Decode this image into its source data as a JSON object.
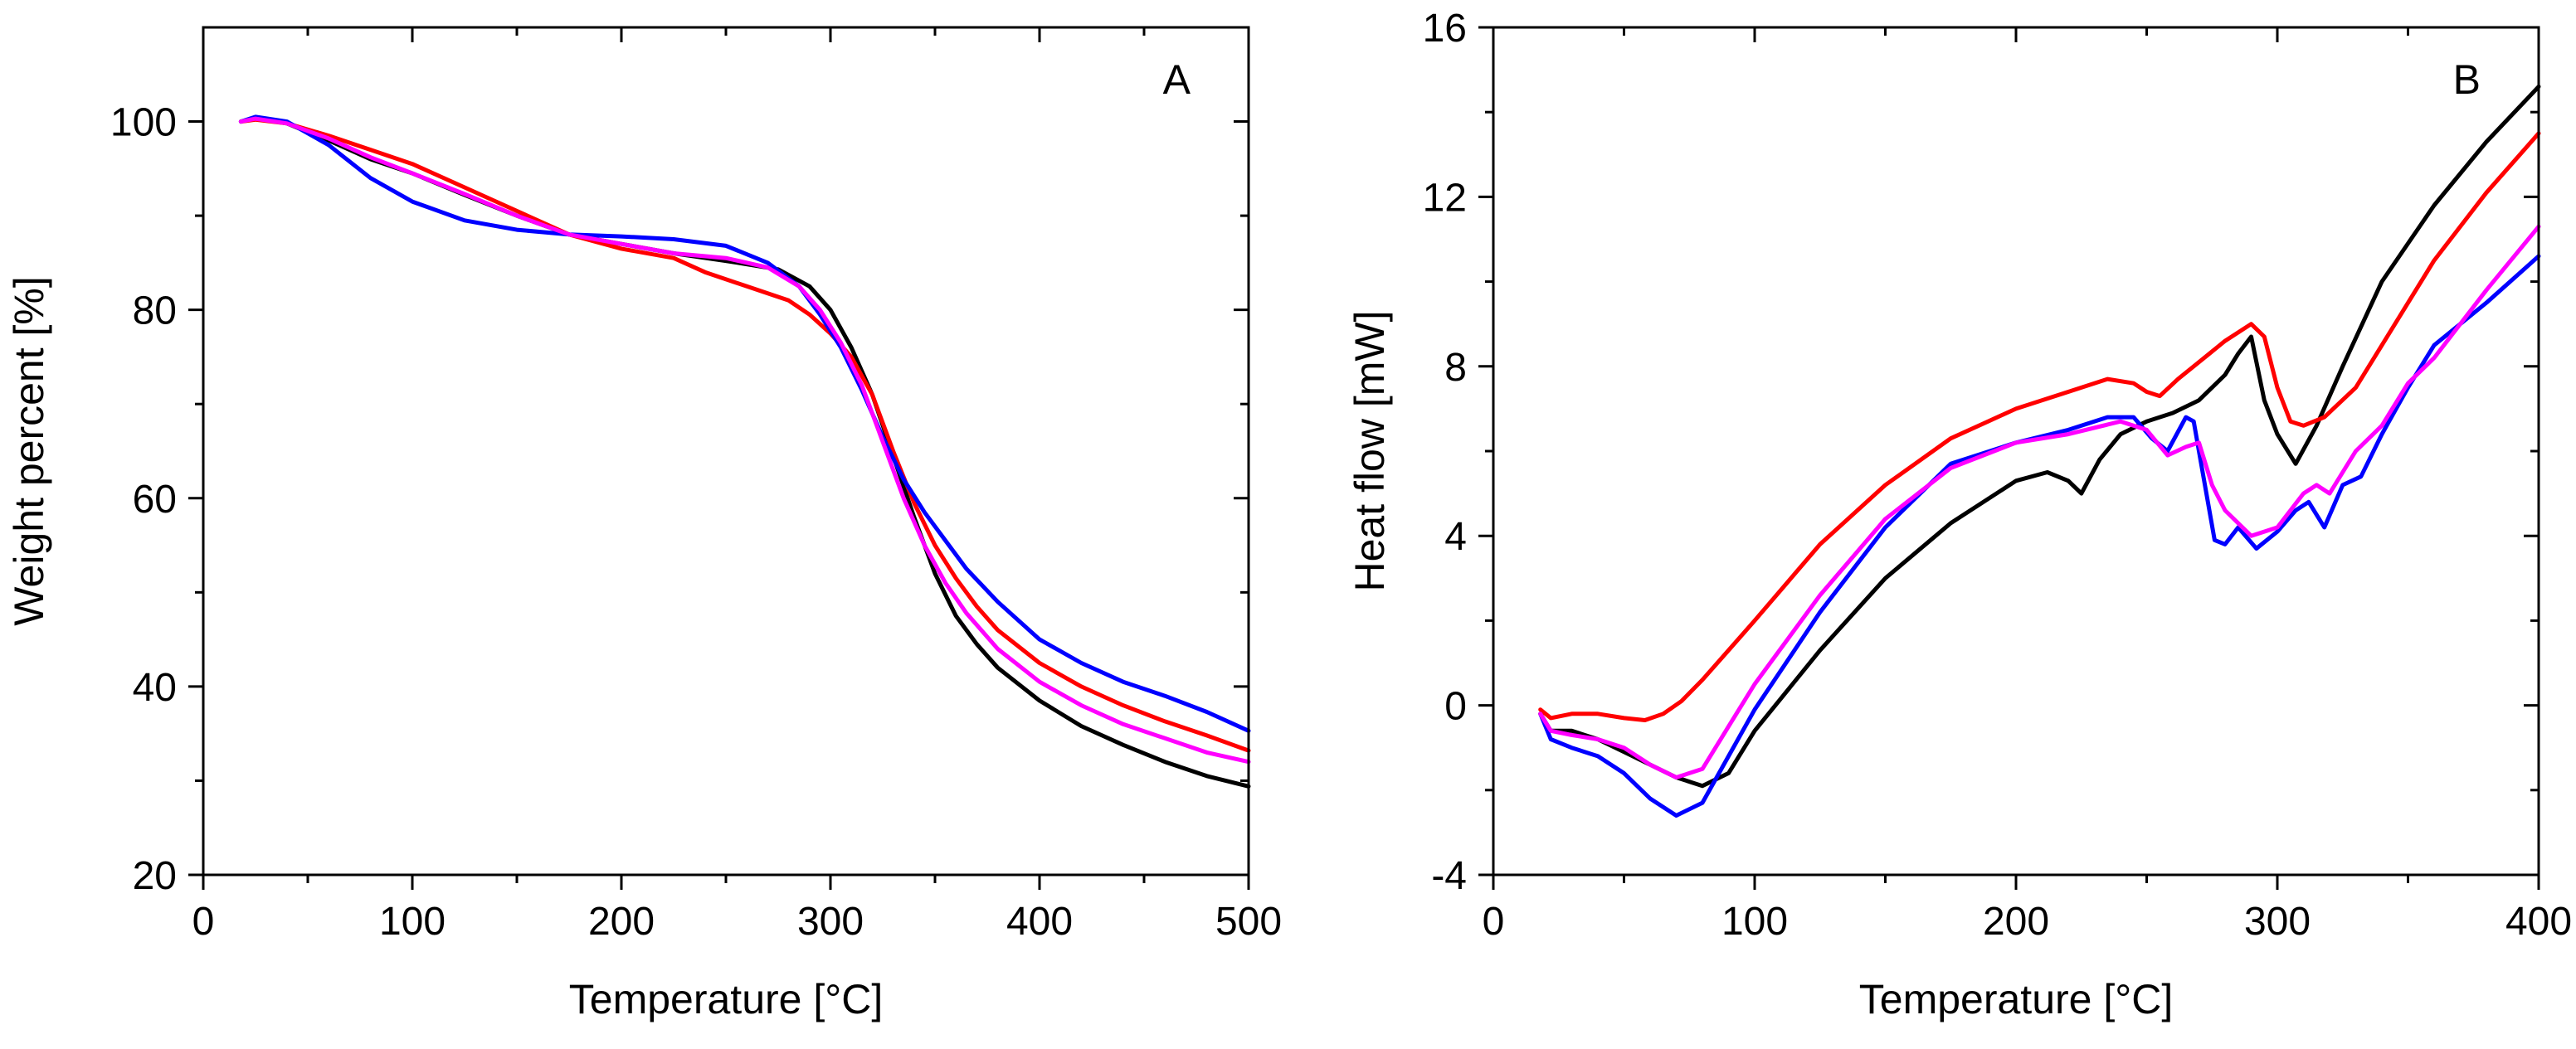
{
  "chart_data": [
    {
      "type": "line",
      "panel_label": "A",
      "xlabel": "Temperature [°C]",
      "ylabel": "Weight percent [%]",
      "xlim": [
        0,
        500
      ],
      "ylim": [
        20,
        110
      ],
      "xticks": [
        0,
        100,
        200,
        300,
        400,
        500
      ],
      "yticks": [
        20,
        40,
        60,
        80,
        100
      ],
      "grid": false,
      "series": [
        {
          "color": "#000000",
          "x": [
            18,
            25,
            40,
            60,
            80,
            100,
            125,
            150,
            175,
            200,
            225,
            250,
            275,
            290,
            300,
            310,
            320,
            330,
            340,
            350,
            360,
            370,
            380,
            400,
            420,
            440,
            460,
            480,
            500
          ],
          "y": [
            100,
            100.4,
            99.8,
            98,
            96,
            94.5,
            92.2,
            90,
            88,
            87,
            86,
            85.2,
            84.3,
            82.5,
            80,
            76,
            71,
            64.5,
            58,
            52,
            47.5,
            44.5,
            42,
            38.5,
            35.8,
            33.8,
            32,
            30.5,
            29.4
          ]
        },
        {
          "color": "#ff0000",
          "x": [
            18,
            25,
            40,
            60,
            80,
            100,
            125,
            150,
            175,
            200,
            225,
            240,
            260,
            280,
            290,
            300,
            310,
            320,
            330,
            340,
            350,
            360,
            370,
            380,
            400,
            420,
            440,
            460,
            480,
            500
          ],
          "y": [
            100,
            100.2,
            99.8,
            98.5,
            97,
            95.5,
            93,
            90.5,
            88,
            86.5,
            85.5,
            84,
            82.5,
            81,
            79.5,
            77.5,
            75,
            71,
            65,
            59.5,
            55,
            51.5,
            48.5,
            46,
            42.5,
            40,
            38,
            36.3,
            34.8,
            33.2
          ]
        },
        {
          "color": "#0000ff",
          "x": [
            18,
            25,
            40,
            60,
            80,
            100,
            125,
            150,
            175,
            200,
            225,
            250,
            270,
            285,
            295,
            305,
            315,
            325,
            335,
            345,
            355,
            365,
            380,
            400,
            420,
            440,
            460,
            480,
            500
          ],
          "y": [
            100,
            100.5,
            100,
            97.5,
            94,
            91.5,
            89.5,
            88.5,
            88,
            87.8,
            87.5,
            86.8,
            85,
            82.5,
            79.5,
            76,
            71.5,
            66.5,
            62,
            58.5,
            55.5,
            52.5,
            49,
            45,
            42.5,
            40.5,
            39,
            37.3,
            35.3
          ]
        },
        {
          "color": "#ff00ff",
          "x": [
            18,
            25,
            40,
            60,
            80,
            100,
            125,
            150,
            175,
            200,
            225,
            250,
            270,
            285,
            295,
            305,
            315,
            325,
            335,
            345,
            355,
            365,
            380,
            400,
            420,
            440,
            460,
            480,
            500
          ],
          "y": [
            100,
            100.3,
            99.8,
            98.2,
            96.2,
            94.5,
            92.3,
            90,
            88,
            87,
            86,
            85.5,
            84.5,
            82.5,
            80,
            76.5,
            72,
            66,
            60,
            55,
            51,
            47.8,
            44,
            40.5,
            38,
            36,
            34.5,
            33,
            32
          ]
        }
      ]
    },
    {
      "type": "line",
      "panel_label": "B",
      "xlabel": "Temperature [°C]",
      "ylabel": "Heat flow [mW]",
      "xlim": [
        0,
        400
      ],
      "ylim": [
        -4,
        16
      ],
      "xticks": [
        0,
        100,
        200,
        300,
        400
      ],
      "yticks": [
        -4,
        0,
        4,
        8,
        12,
        16
      ],
      "grid": false,
      "series": [
        {
          "color": "#000000",
          "x": [
            18,
            22,
            30,
            40,
            50,
            60,
            70,
            80,
            90,
            100,
            125,
            150,
            175,
            200,
            212,
            220,
            225,
            232,
            240,
            250,
            260,
            270,
            280,
            285,
            290,
            295,
            300,
            307,
            315,
            325,
            340,
            360,
            380,
            400
          ],
          "y": [
            -0.2,
            -0.6,
            -0.6,
            -0.8,
            -1.1,
            -1.4,
            -1.7,
            -1.9,
            -1.6,
            -0.6,
            1.3,
            3,
            4.3,
            5.3,
            5.5,
            5.3,
            5.0,
            5.8,
            6.4,
            6.7,
            6.9,
            7.2,
            7.8,
            8.3,
            8.7,
            7.2,
            6.4,
            5.7,
            6.6,
            8,
            10,
            11.8,
            13.3,
            14.6
          ]
        },
        {
          "color": "#ff0000",
          "x": [
            18,
            22,
            30,
            40,
            50,
            58,
            65,
            72,
            80,
            90,
            100,
            125,
            150,
            175,
            200,
            220,
            235,
            245,
            250,
            255,
            262,
            270,
            280,
            290,
            295,
            300,
            305,
            310,
            318,
            330,
            345,
            360,
            380,
            400
          ],
          "y": [
            -0.1,
            -0.3,
            -0.2,
            -0.2,
            -0.3,
            -0.35,
            -0.2,
            0.1,
            0.6,
            1.3,
            2,
            3.8,
            5.2,
            6.3,
            7,
            7.4,
            7.7,
            7.6,
            7.4,
            7.3,
            7.7,
            8.1,
            8.6,
            9,
            8.7,
            7.5,
            6.7,
            6.6,
            6.8,
            7.5,
            9,
            10.5,
            12.1,
            13.5
          ]
        },
        {
          "color": "#0000ff",
          "x": [
            18,
            22,
            30,
            40,
            50,
            60,
            70,
            80,
            90,
            100,
            125,
            150,
            175,
            200,
            220,
            235,
            245,
            252,
            258,
            265,
            268,
            272,
            276,
            280,
            285,
            292,
            300,
            307,
            312,
            318,
            325,
            332,
            340,
            350,
            360,
            380,
            400
          ],
          "y": [
            -0.2,
            -0.8,
            -1.0,
            -1.2,
            -1.6,
            -2.2,
            -2.6,
            -2.3,
            -1.2,
            -0.1,
            2.2,
            4.2,
            5.7,
            6.2,
            6.5,
            6.8,
            6.8,
            6.3,
            6,
            6.8,
            6.7,
            5.3,
            3.9,
            3.8,
            4.2,
            3.7,
            4.1,
            4.6,
            4.8,
            4.2,
            5.2,
            5.4,
            6.4,
            7.5,
            8.5,
            9.5,
            10.6
          ]
        },
        {
          "color": "#ff00ff",
          "x": [
            18,
            22,
            30,
            40,
            50,
            60,
            70,
            80,
            90,
            100,
            125,
            150,
            175,
            200,
            220,
            240,
            250,
            258,
            265,
            270,
            275,
            280,
            290,
            300,
            310,
            315,
            320,
            330,
            340,
            350,
            360,
            380,
            400
          ],
          "y": [
            -0.2,
            -0.6,
            -0.7,
            -0.8,
            -1.0,
            -1.4,
            -1.7,
            -1.5,
            -0.5,
            0.5,
            2.6,
            4.4,
            5.6,
            6.2,
            6.4,
            6.7,
            6.5,
            5.9,
            6.1,
            6.2,
            5.2,
            4.6,
            4.0,
            4.2,
            5,
            5.2,
            5,
            6,
            6.6,
            7.6,
            8.2,
            9.8,
            11.3
          ]
        }
      ]
    }
  ]
}
